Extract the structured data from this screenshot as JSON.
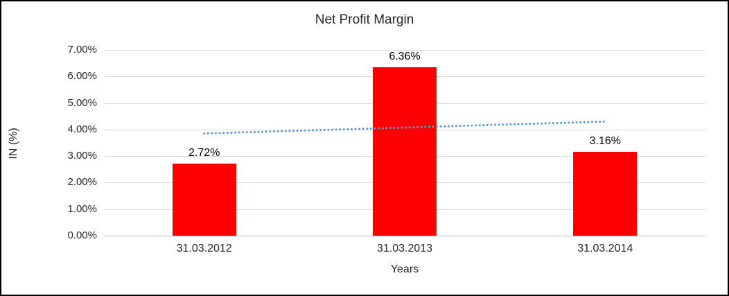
{
  "chart_data": {
    "type": "bar",
    "title": "Net Profit Margin",
    "xlabel": "Years",
    "ylabel": "IN (%)",
    "categories": [
      "31.03.2012",
      "31.03.2013",
      "31.03.2014"
    ],
    "values": [
      2.72,
      6.36,
      3.16
    ],
    "data_labels": [
      "2.72%",
      "6.36%",
      "3.16%"
    ],
    "ylim": [
      0,
      7
    ],
    "ytick_step": 1,
    "ytick_labels": [
      "0.00%",
      "1.00%",
      "2.00%",
      "3.00%",
      "4.00%",
      "5.00%",
      "6.00%",
      "7.00%"
    ],
    "grid": true,
    "legend": "none",
    "bar_color": "#ff0000",
    "gridline_color": "#d9d9d9",
    "trendline": {
      "style": "dotted",
      "color": "#5b9bd5",
      "start_value": 3.85,
      "end_value": 4.3
    }
  }
}
